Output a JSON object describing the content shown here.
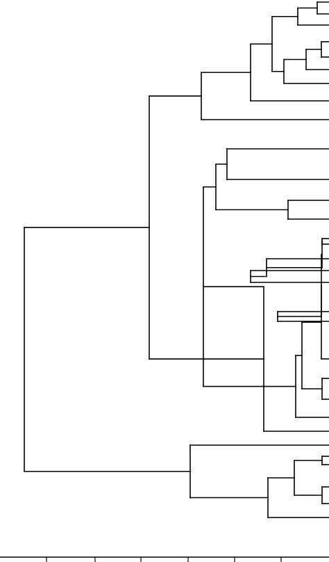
{
  "diagram": {
    "type": "dendrogram",
    "orientation": "horizontal",
    "stroke_color": "#000000",
    "background": "#ffffff",
    "axis": {
      "tick_count": 6,
      "tick_labels": []
    },
    "tree": {
      "children": [
        {
          "children": [
            {
              "children": [
                {
                  "children": [
                    {
                      "children": [
                        {
                          "children": [
                            {
                              "children": [
                                {},
                                {}
                              ]
                            },
                            {}
                          ]
                        },
                        {
                          "children": [
                            {
                              "children": [
                                {
                                  "children": [
                                    {},
                                    {}
                                  ]
                                },
                                {}
                              ]
                            },
                            {}
                          ]
                        }
                      ]
                    },
                    {}
                  ]
                },
                {}
              ]
            },
            {
              "children": [
                {
                  "children": [
                    {
                      "children": [
                        {
                          "children": [
                            {},
                            {}
                          ]
                        },
                        {
                          "children": [
                            {},
                            {}
                          ]
                        }
                      ]
                    },
                    {
                      "children": [
                        {
                          "children": [
                            {
                              "children": [
                                {
                                  "children": [
                                    {
                                      "children": [
                                        {
                                          "children": [
                                            {},
                                            {}
                                          ]
                                        },
                                        {
                                          "children": [
                                            {},
                                            {
                                              "children": [
                                                {},
                                                {}
                                              ]
                                            }
                                          ]
                                        }
                                      ]
                                    },
                                    {
                                      "children": [
                                        {},
                                        {}
                                      ]
                                    }
                                  ]
                                },
                                {}
                              ]
                            },
                            {
                              "children": [
                                {},
                                {}
                              ]
                            }
                          ]
                        },
                        {}
                      ]
                    }
                  ]
                },
                {}
              ]
            }
          ]
        },
        {
          "children": [
            {},
            {
              "children": [
                {
                  "children": [
                    {
                      "children": [
                        {},
                        {}
                      ]
                    },
                    {
                      "children": [
                        {},
                        {}
                      ]
                    }
                  ]
                },
                {}
              ]
            }
          ]
        }
      ]
    }
  }
}
